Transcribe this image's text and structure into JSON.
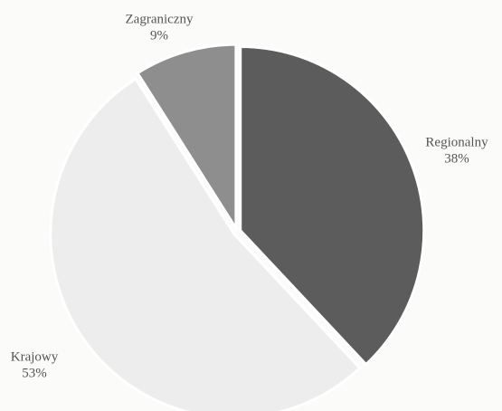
{
  "chart_data": {
    "type": "pie",
    "categories": [
      "Regionalny",
      "Krajowy",
      "Zagraniczny"
    ],
    "values": [
      38,
      53,
      9
    ],
    "value_labels": [
      "38%",
      "53%",
      "9%"
    ],
    "colors": [
      "#5c5c5c",
      "#ededed",
      "#8e8e8e"
    ]
  }
}
